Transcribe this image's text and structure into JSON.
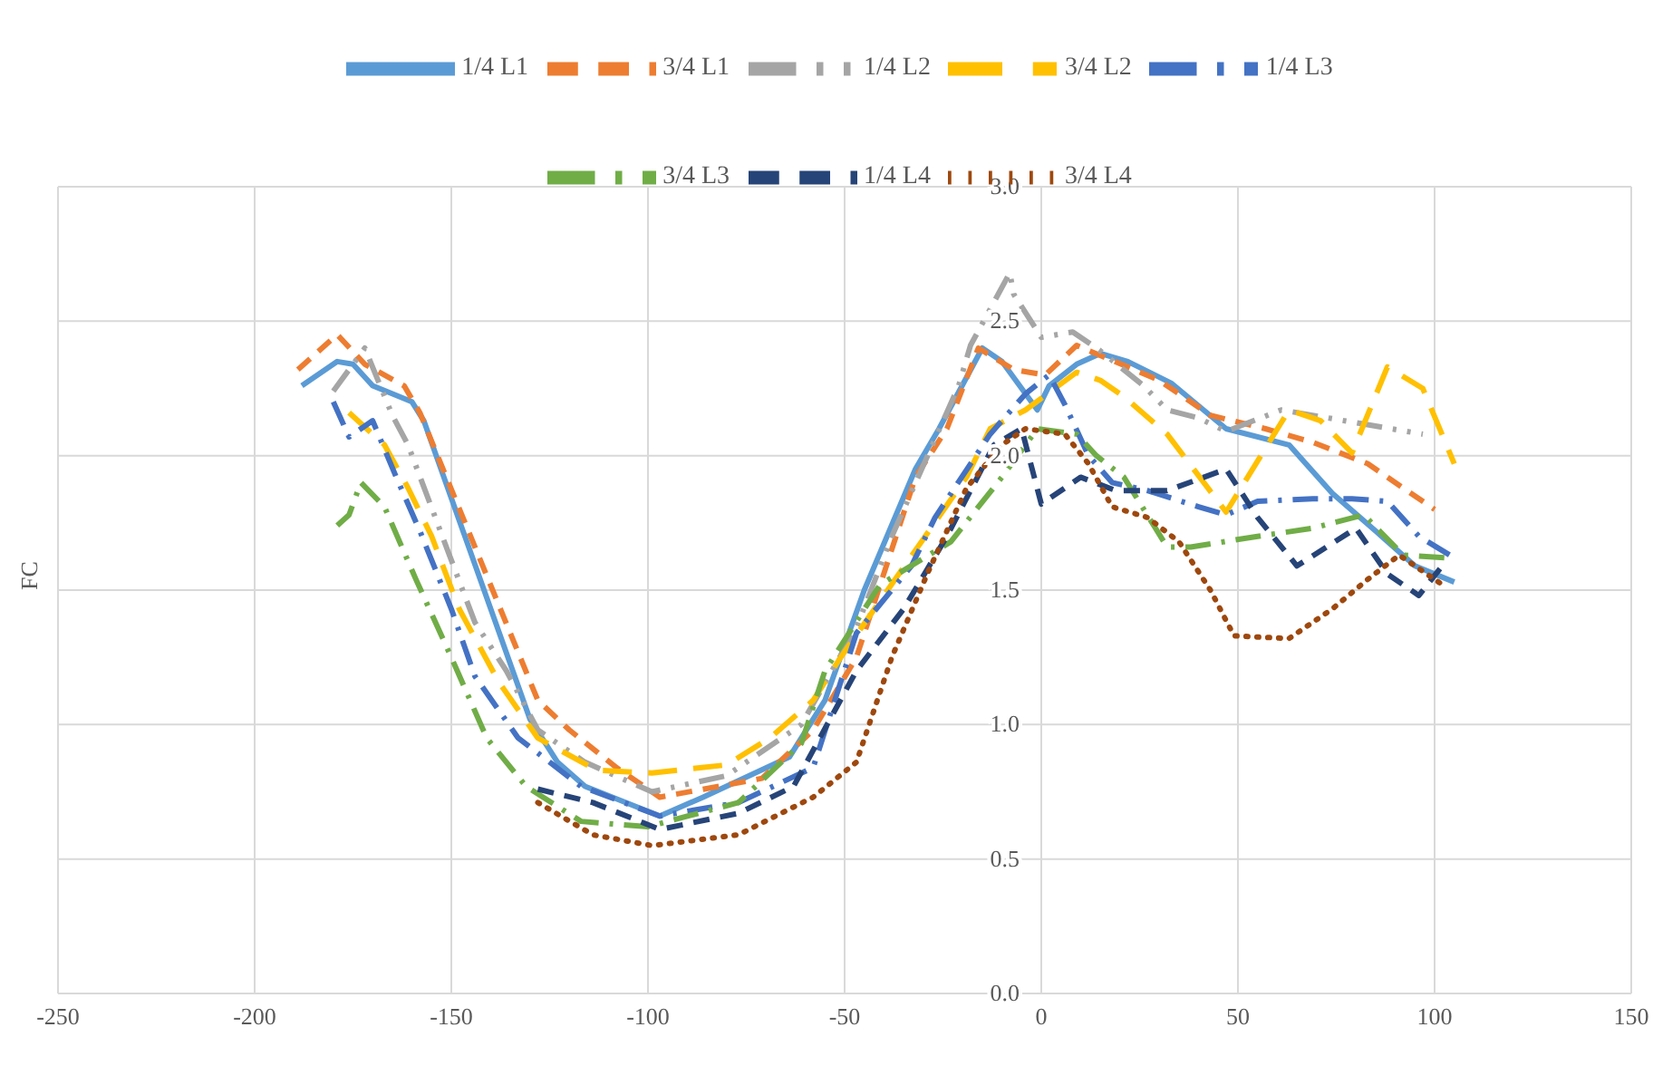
{
  "chart_data": {
    "type": "line",
    "ylabel": "FC",
    "xlim": [
      -250,
      150
    ],
    "xticks": [
      -250,
      -200,
      -150,
      -100,
      -50,
      0,
      50,
      100,
      150
    ],
    "ylim": [
      0,
      3
    ],
    "yticks": [
      {
        "value": 0,
        "label": "0.0"
      },
      {
        "value": 0.5,
        "label": "0.5"
      },
      {
        "value": 1,
        "label": "1.0"
      },
      {
        "value": 1.5,
        "label": "1.5"
      },
      {
        "value": 2,
        "label": "2.0"
      },
      {
        "value": 2.5,
        "label": "2.5"
      },
      {
        "value": 3,
        "label": "3.0"
      }
    ],
    "grid": true,
    "legend": "top",
    "marker": "none",
    "series": [
      {
        "name": "1/4 L1",
        "color": "#5b9bd5",
        "line_style": "solid",
        "x": [
          -188,
          -179,
          -175,
          -170,
          -160,
          -157,
          -130,
          -123,
          -116,
          -97,
          -86,
          -64,
          -55,
          -45,
          -32,
          -26,
          -15,
          -10,
          -1,
          2,
          9,
          15,
          22,
          33,
          47,
          63,
          74,
          85,
          95,
          105
        ],
        "values": [
          2.26,
          2.35,
          2.34,
          2.26,
          2.2,
          2.13,
          1.02,
          0.86,
          0.77,
          0.66,
          0.73,
          0.88,
          1.09,
          1.5,
          1.95,
          2.1,
          2.4,
          2.35,
          2.17,
          2.26,
          2.34,
          2.38,
          2.35,
          2.27,
          2.1,
          2.04,
          1.86,
          1.72,
          1.59,
          1.53
        ]
      },
      {
        "name": "3/4 L1",
        "color": "#ed7d31",
        "line_style": "dashed",
        "x": [
          -189,
          -179,
          -172,
          -162,
          -158,
          -128,
          -120,
          -108,
          -97,
          -71,
          -58,
          -47,
          -32,
          -24,
          -16,
          -7,
          1,
          9,
          30,
          43,
          57,
          69,
          83,
          97,
          100
        ],
        "values": [
          2.32,
          2.45,
          2.34,
          2.26,
          2.16,
          1.09,
          0.98,
          0.84,
          0.73,
          0.8,
          0.98,
          1.25,
          1.92,
          2.1,
          2.4,
          2.32,
          2.3,
          2.41,
          2.28,
          2.15,
          2.1,
          2.05,
          1.97,
          1.83,
          1.8
        ]
      },
      {
        "name": "1/4 L2",
        "color": "#a5a5a5",
        "line_style": "dashdotdot",
        "x": [
          -180,
          -172,
          -165,
          -161,
          -151,
          -144,
          -136,
          -128,
          -116,
          -99,
          -80,
          -61,
          -47,
          -38,
          -21,
          -18,
          -8,
          -7,
          0,
          8,
          15,
          26,
          32,
          40,
          47,
          61,
          77,
          97
        ],
        "values": [
          2.24,
          2.4,
          2.15,
          2.04,
          1.65,
          1.38,
          1.2,
          0.98,
          0.86,
          0.75,
          0.81,
          1.0,
          1.36,
          1.7,
          2.26,
          2.41,
          2.68,
          2.6,
          2.44,
          2.46,
          2.39,
          2.26,
          2.17,
          2.14,
          2.09,
          2.17,
          2.13,
          2.08
        ]
      },
      {
        "name": "3/4 L2",
        "color": "#ffc000",
        "line_style": "longdash",
        "x": [
          -176,
          -167,
          -161,
          -155,
          -148,
          -138,
          -128,
          -113,
          -99,
          -80,
          -69,
          -58,
          -51,
          -19,
          -13,
          -4,
          9,
          15,
          21,
          32,
          47,
          63,
          71,
          79,
          88,
          97,
          105
        ],
        "values": [
          2.16,
          2.04,
          1.88,
          1.7,
          1.43,
          1.16,
          0.95,
          0.83,
          0.82,
          0.85,
          0.95,
          1.09,
          1.25,
          1.92,
          2.1,
          2.17,
          2.31,
          2.28,
          2.22,
          2.08,
          1.79,
          2.17,
          2.13,
          2.01,
          2.33,
          2.25,
          1.97
        ]
      },
      {
        "name": "1/4 L3",
        "color": "#4472c4",
        "line_style": "dashdot",
        "x": [
          -180,
          -176,
          -170,
          -164,
          -158,
          -150,
          -144,
          -133,
          -117,
          -97,
          -77,
          -58,
          -47,
          -33,
          -27,
          -13,
          -4,
          2,
          6,
          12,
          18,
          27,
          40,
          47,
          55,
          69,
          79,
          88,
          96,
          105
        ],
        "values": [
          2.2,
          2.07,
          2.13,
          1.92,
          1.72,
          1.43,
          1.18,
          0.95,
          0.77,
          0.66,
          0.71,
          0.84,
          1.34,
          1.59,
          1.77,
          2.08,
          2.23,
          2.3,
          2.19,
          2.0,
          1.9,
          1.87,
          1.81,
          1.78,
          1.83,
          1.84,
          1.84,
          1.83,
          1.7,
          1.62
        ]
      },
      {
        "name": "3/4 L3",
        "color": "#70ad47",
        "line_style": "dashdot",
        "x": [
          -179,
          -176,
          -173,
          -167,
          -159,
          -150,
          -141,
          -131,
          -117,
          -100,
          -77,
          -61,
          -55,
          -41,
          -23,
          -10,
          -1,
          9,
          14,
          21,
          32,
          38,
          55,
          69,
          82,
          92,
          103
        ],
        "values": [
          1.74,
          1.78,
          1.9,
          1.81,
          1.54,
          1.25,
          0.95,
          0.77,
          0.64,
          0.62,
          0.71,
          0.93,
          1.2,
          1.52,
          1.68,
          1.92,
          2.1,
          2.08,
          2.0,
          1.92,
          1.66,
          1.66,
          1.7,
          1.73,
          1.78,
          1.63,
          1.62
        ]
      },
      {
        "name": "1/4 L4",
        "color": "#264478",
        "line_style": "dashed",
        "x": [
          -128,
          -114,
          -97,
          -77,
          -63,
          -47,
          -35,
          -24,
          -12,
          -5,
          0,
          10,
          19,
          32,
          47,
          55,
          65,
          80,
          88,
          96,
          103
        ],
        "values": [
          0.76,
          0.71,
          0.61,
          0.67,
          0.77,
          1.2,
          1.43,
          1.7,
          2.04,
          2.1,
          1.82,
          1.92,
          1.87,
          1.87,
          1.95,
          1.77,
          1.59,
          1.73,
          1.56,
          1.48,
          1.61
        ]
      },
      {
        "name": "3/4 L4",
        "color": "#9e480e",
        "line_style": "dotted",
        "x": [
          -128,
          -114,
          -99,
          -77,
          -58,
          -47,
          -38,
          -29,
          -19,
          -10,
          -4,
          6,
          12,
          18,
          27,
          35,
          43,
          49,
          63,
          74,
          83,
          91,
          103
        ],
        "values": [
          0.71,
          0.59,
          0.55,
          0.59,
          0.73,
          0.86,
          1.25,
          1.56,
          1.88,
          2.04,
          2.1,
          2.08,
          1.97,
          1.81,
          1.77,
          1.68,
          1.5,
          1.33,
          1.32,
          1.43,
          1.54,
          1.63,
          1.51
        ]
      }
    ]
  }
}
